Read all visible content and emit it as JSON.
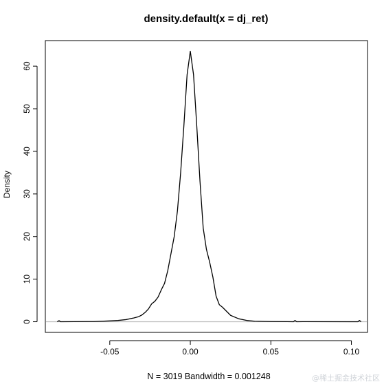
{
  "chart_data": {
    "type": "line",
    "title": "density.default(x = dj_ret)",
    "xlabel": "N = 3019   Bandwidth = 0.001248",
    "ylabel": "Density",
    "xlim": [
      -0.09,
      0.11
    ],
    "ylim": [
      -2.5,
      66
    ],
    "xticks": [
      -0.05,
      0.0,
      0.05,
      0.1
    ],
    "xtick_labels": [
      "-0.05",
      "0.00",
      "0.05",
      "0.10"
    ],
    "yticks": [
      0,
      10,
      20,
      30,
      40,
      50,
      60
    ],
    "ytick_labels": [
      "0",
      "10",
      "20",
      "30",
      "40",
      "50",
      "60"
    ],
    "grid": false,
    "legend": "none",
    "baseline_y": 0,
    "colors": {
      "line": "#000000",
      "baseline": "#bdbdbd",
      "frame": "#000000"
    },
    "series": [
      {
        "x": [
          -0.0826,
          -0.0815,
          -0.0805,
          -0.06,
          -0.05,
          -0.045,
          -0.04,
          -0.035,
          -0.032,
          -0.03,
          -0.028,
          -0.026,
          -0.024,
          -0.022,
          -0.02,
          -0.018,
          -0.016,
          -0.014,
          -0.012,
          -0.01,
          -0.008,
          -0.006,
          -0.004,
          -0.002,
          0.0,
          0.002,
          0.004,
          0.006,
          0.008,
          0.01,
          0.012,
          0.014,
          0.016,
          0.018,
          0.02,
          0.025,
          0.03,
          0.035,
          0.04,
          0.05,
          0.06,
          0.064,
          0.065,
          0.066,
          0.07,
          0.1,
          0.104,
          0.105,
          0.106
        ],
        "y": [
          0.0,
          0.25,
          0.0,
          0.05,
          0.2,
          0.3,
          0.5,
          0.9,
          1.2,
          1.6,
          2.2,
          3.0,
          4.2,
          4.8,
          5.8,
          7.5,
          9.0,
          12.0,
          16.0,
          20.0,
          26.0,
          35.0,
          46.0,
          58.0,
          63.5,
          58.0,
          46.0,
          33.0,
          22.0,
          17.0,
          14.0,
          10.5,
          6.0,
          4.0,
          3.4,
          1.5,
          0.7,
          0.3,
          0.12,
          0.05,
          0.03,
          0.0,
          0.3,
          0.0,
          0.02,
          0.0,
          0.0,
          0.3,
          0.0
        ]
      }
    ]
  },
  "watermark": "@稀土掘金技术社区"
}
